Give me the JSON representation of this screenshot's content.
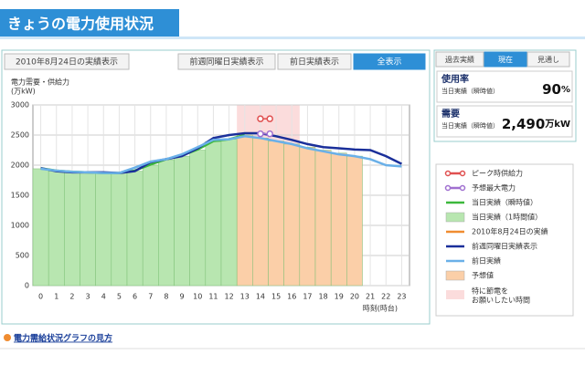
{
  "header": {
    "title": "きょうの電力使用状況"
  },
  "tabs": {
    "left": "2010年8月24日の実績表示",
    "right": [
      "前週同曜日実績表示",
      "前日実績表示",
      "全表示"
    ],
    "active": 2
  },
  "panel": {
    "tabs": [
      "過去実績",
      "現在",
      "見通し"
    ],
    "active": 1,
    "rows": [
      {
        "label": "使用率",
        "sub": "当日実績（瞬時値）",
        "value": "90",
        "unit": "%"
      },
      {
        "label": "需要",
        "sub": "当日実績（瞬時値）",
        "value": "2,490",
        "unit": "万kW"
      }
    ]
  },
  "footer": {
    "link": "電力需給状況グラフの見方"
  },
  "chart_data": {
    "type": "combo",
    "ylabel": [
      "電力需要・供給力",
      "(万kW)"
    ],
    "xlabel": "時刻(時台)",
    "x": [
      0,
      1,
      2,
      3,
      4,
      5,
      6,
      7,
      8,
      9,
      10,
      11,
      12,
      13,
      14,
      15,
      16,
      17,
      18,
      19,
      20,
      21,
      22,
      23
    ],
    "xlim": [
      -0.5,
      23.5
    ],
    "ylim": [
      0,
      3000
    ],
    "yticks": [
      0,
      500,
      1000,
      1500,
      2000,
      2500,
      3000
    ],
    "grid": true,
    "highlight": {
      "name": [
        "特に節電を",
        "お願いしたい時間"
      ],
      "from": 12.5,
      "to": 16.5,
      "color": "#fbdcdc"
    },
    "series": [
      {
        "name": "ピーク時供給力",
        "style": "points",
        "color": "#e05050",
        "x": [
          14,
          14.6
        ],
        "values": [
          2770,
          2770
        ]
      },
      {
        "name": "予想最大電力",
        "style": "points",
        "color": "#a070d0",
        "x": [
          14,
          14.6
        ],
        "values": [
          2520,
          2520
        ]
      },
      {
        "name": "当日実績（瞬時値）",
        "style": "line",
        "color": "#3cb83c",
        "values": [
          1950,
          1910,
          1890,
          1880,
          1870,
          1870,
          1910,
          2010,
          2100,
          2160,
          2260,
          2400,
          2430,
          2500,
          null,
          null,
          null,
          null,
          null,
          null,
          null,
          null,
          null,
          null
        ]
      },
      {
        "name": "当日実績（1時間値）",
        "style": "bar",
        "color": "#b8e6b0",
        "values": [
          1940,
          1900,
          1890,
          1880,
          1870,
          1870,
          1900,
          2000,
          2090,
          2150,
          2250,
          2390,
          2430,
          null,
          null,
          null,
          null,
          null,
          null,
          null,
          null,
          null,
          null,
          null
        ]
      },
      {
        "name": "2010年8月24日の実績",
        "style": "line",
        "color": "#f08c30",
        "values": [
          null,
          null,
          null,
          null,
          null,
          null,
          null,
          null,
          null,
          null,
          null,
          null,
          null,
          null,
          null,
          null,
          null,
          null,
          null,
          null,
          null,
          null,
          null,
          null
        ]
      },
      {
        "name": "前週同曜日実績表示",
        "style": "line",
        "color": "#1a2f9a",
        "values": [
          1950,
          1900,
          1880,
          1880,
          1880,
          1870,
          1900,
          2050,
          2100,
          2150,
          2280,
          2450,
          2500,
          2530,
          2530,
          2480,
          2420,
          2350,
          2300,
          2280,
          2260,
          2250,
          2150,
          2020
        ]
      },
      {
        "name": "前日実績",
        "style": "line",
        "color": "#6ab0e8",
        "values": [
          1940,
          1910,
          1890,
          1880,
          1870,
          1870,
          1960,
          2060,
          2100,
          2180,
          2300,
          2420,
          2430,
          2480,
          2450,
          2400,
          2350,
          2280,
          2230,
          2180,
          2150,
          2100,
          2000,
          1980
        ]
      },
      {
        "name": "予想値",
        "style": "bar",
        "color": "#fbcfa8",
        "values": [
          null,
          null,
          null,
          null,
          null,
          null,
          null,
          null,
          null,
          null,
          null,
          null,
          null,
          2500,
          2450,
          2400,
          2350,
          2300,
          2250,
          2200,
          2150,
          null,
          null,
          null
        ]
      }
    ]
  }
}
